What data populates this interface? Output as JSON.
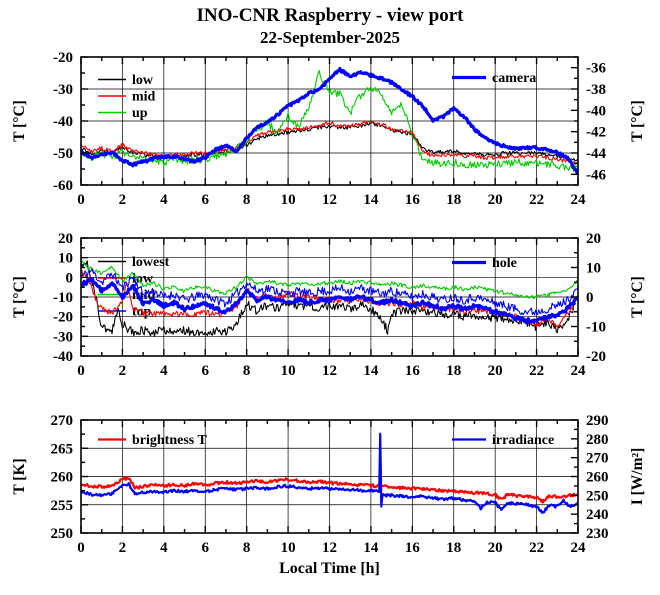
{
  "page_title": "INO-CNR Raspberry - view port",
  "page_subtitle": "22-September-2025",
  "colors": {
    "black": "#000000",
    "red": "#ff0000",
    "green": "#00cc00",
    "blue": "#0000ff",
    "frame": "#000000",
    "background": "#ffffff"
  },
  "chart_data": [
    {
      "type": "line",
      "grid": "major",
      "x_axis": {
        "label": "",
        "range": [
          0,
          24
        ],
        "ticks": [
          0,
          2,
          4,
          6,
          8,
          10,
          12,
          14,
          16,
          18,
          20,
          22,
          24
        ],
        "minor_step": 1
      },
      "left_axis": {
        "label": "T [°C]",
        "range": [
          -60,
          -20
        ],
        "ticks": [
          -60,
          -50,
          -40,
          -30,
          -20
        ],
        "minor_step": 5
      },
      "right_axis": {
        "label": "T [°C]",
        "range": [
          -47,
          -35
        ],
        "ticks": [
          -46,
          -44,
          -42,
          -40,
          -38,
          -36
        ],
        "minor_step": 1
      },
      "legend_left": [
        "low",
        "mid",
        "up"
      ],
      "legend_right": [
        "camera"
      ],
      "series": [
        {
          "name": "low",
          "color": "#000000",
          "axis": "left",
          "width": 1.1,
          "noise": 0.6,
          "x_start": 0,
          "x_step": 0.5,
          "y": [
            -48.5,
            -50.5,
            -49,
            -50,
            -48,
            -50,
            -50.5,
            -51,
            -51.5,
            -51,
            -51,
            -50.5,
            -50.5,
            -50,
            -49.5,
            -49,
            -47.5,
            -45.5,
            -44.5,
            -44,
            -43.5,
            -43,
            -42.5,
            -42,
            -41.5,
            -42,
            -42,
            -41.5,
            -40.5,
            -41.5,
            -43,
            -43.5,
            -44,
            -48.5,
            -50,
            -49.5,
            -49.5,
            -50,
            -50,
            -50.5,
            -50.5,
            -50,
            -50,
            -50,
            -50,
            -50.5,
            -51,
            -51.5,
            -52
          ]
        },
        {
          "name": "mid",
          "color": "#ff0000",
          "axis": "left",
          "width": 1.1,
          "noise": 0.6,
          "x_start": 0,
          "x_step": 0.5,
          "y": [
            -47.5,
            -49.5,
            -48.5,
            -49.5,
            -47.5,
            -49.5,
            -50,
            -50.5,
            -51,
            -50.5,
            -50.5,
            -50,
            -50,
            -49.5,
            -49,
            -48.5,
            -46.5,
            -44.5,
            -43.5,
            -43,
            -42.5,
            -42.5,
            -42,
            -41.5,
            -40.5,
            -41.5,
            -41.5,
            -41,
            -40,
            -41,
            -42.5,
            -43,
            -43.5,
            -49.5,
            -51,
            -50.5,
            -50.5,
            -51,
            -51,
            -51.5,
            -51.5,
            -51,
            -51,
            -51,
            -51,
            -51.5,
            -52,
            -52.5,
            -53
          ]
        },
        {
          "name": "up",
          "color": "#00cc00",
          "axis": "left",
          "width": 1.1,
          "noise": 1.2,
          "x_start": 0,
          "x_step": 0.5,
          "y": [
            -49.5,
            -51.5,
            -50,
            -51,
            -49.5,
            -51.5,
            -52,
            -52.5,
            -53,
            -52.5,
            -52.5,
            -52,
            -52,
            -51,
            -50,
            -48.5,
            -46,
            -42.5,
            -40.5,
            -44,
            -38.5,
            -42,
            -36,
            -25,
            -31,
            -31.5,
            -37.5,
            -32,
            -29.5,
            -31,
            -38,
            -35,
            -44,
            -52,
            -53,
            -53,
            -53,
            -53.5,
            -53.5,
            -54,
            -53.5,
            -53,
            -53,
            -53,
            -53,
            -53.5,
            -54,
            -54.5,
            -55
          ]
        },
        {
          "name": "camera",
          "color": "#0000ff",
          "axis": "right",
          "width": 3.2,
          "noise": 0.12,
          "x_start": 0,
          "x_step": 0.5,
          "y": [
            -43.8,
            -44.5,
            -44.2,
            -43.9,
            -44.7,
            -45.1,
            -44.8,
            -44.5,
            -44.4,
            -44.3,
            -44.6,
            -44.8,
            -44.4,
            -43.7,
            -43.3,
            -43.9,
            -42.6,
            -41.6,
            -41.1,
            -40.4,
            -39.6,
            -39.1,
            -38.4,
            -38.1,
            -37,
            -36.2,
            -36.8,
            -36.5,
            -36.7,
            -37,
            -37.4,
            -38.1,
            -38.7,
            -39.6,
            -40.9,
            -40.6,
            -39.8,
            -40.6,
            -41.8,
            -42.6,
            -43.1,
            -43.4,
            -43.6,
            -43.5,
            -43.5,
            -43.7,
            -43.9,
            -44.5,
            -45.9
          ]
        }
      ]
    },
    {
      "type": "line",
      "grid": "major",
      "x_axis": {
        "label": "",
        "range": [
          0,
          24
        ],
        "ticks": [
          0,
          2,
          4,
          6,
          8,
          10,
          12,
          14,
          16,
          18,
          20,
          22,
          24
        ],
        "minor_step": 1
      },
      "left_axis": {
        "label": "T [°C]",
        "range": [
          -40,
          20
        ],
        "ticks": [
          -40,
          -30,
          -20,
          -10,
          0,
          10,
          20
        ],
        "minor_step": 5
      },
      "right_axis": {
        "label": "T [°C]",
        "range": [
          -20,
          20
        ],
        "ticks": [
          -20,
          -10,
          0,
          10,
          20
        ],
        "minor_step": 5
      },
      "legend_left": [
        "lowest",
        "low",
        "mid",
        "top"
      ],
      "legend_right": [
        "hole"
      ],
      "series": [
        {
          "name": "lowest",
          "color": "#000000",
          "axis": "left",
          "width": 1.1,
          "noise": 2.2,
          "x": [
            0,
            0.3,
            0.6,
            1,
            1.5,
            1.8,
            2,
            2.5,
            3,
            3.5,
            4,
            4.5,
            5,
            5.5,
            6,
            6.5,
            7,
            7.5,
            8,
            8.5,
            9,
            9.5,
            10,
            10.5,
            11,
            11.5,
            12,
            12.5,
            13,
            13.5,
            14,
            14.5,
            14.8,
            15,
            15.5,
            16,
            16.5,
            17,
            17.5,
            18,
            18.5,
            19,
            19.5,
            20,
            20.5,
            21,
            21.5,
            22,
            22.5,
            23,
            23.5,
            24
          ],
          "y": [
            6,
            7,
            -4,
            -25,
            -27,
            -17,
            -24,
            -28,
            -27,
            -28,
            -27,
            -28,
            -27,
            -28,
            -28,
            -27,
            -28,
            -24,
            -13,
            -17,
            -14,
            -16,
            -13,
            -15,
            -14,
            -16,
            -14,
            -15,
            -16,
            -14,
            -16,
            -21,
            -27,
            -18,
            -17,
            -18,
            -17,
            -18,
            -19,
            -18,
            -20,
            -19,
            -21,
            -20,
            -22,
            -21,
            -23,
            -25,
            -23,
            -26,
            -22,
            -10
          ]
        },
        {
          "name": "low",
          "color": "#ff0000",
          "axis": "left",
          "width": 1.1,
          "noise": 1.6,
          "x": [
            0,
            0.4,
            0.8,
            1,
            1.5,
            2,
            2.2,
            2.5,
            3,
            3.5,
            4,
            4.5,
            5,
            5.5,
            6,
            6.5,
            7,
            7.5,
            8,
            8.5,
            9,
            9.5,
            10,
            10.5,
            11,
            11.5,
            12,
            12.5,
            13,
            13.5,
            14,
            14.5,
            15,
            15.5,
            16,
            16.5,
            17,
            17.5,
            18,
            18.5,
            19,
            19.5,
            20,
            20.5,
            21,
            21.5,
            22,
            22.5,
            23,
            23.5,
            24
          ],
          "y": [
            3,
            -2,
            -14,
            -16,
            -18,
            -12,
            -2,
            -16,
            -18,
            -19,
            -18,
            -19,
            -18,
            -19,
            -18,
            -19,
            -18,
            -15,
            -6,
            -11,
            -9,
            -11,
            -8,
            -10,
            -10,
            -11,
            -11,
            -12,
            -12,
            -11,
            -12,
            -14,
            -13,
            -14,
            -13,
            -15,
            -15,
            -16,
            -16,
            -17,
            -17,
            -18,
            -18,
            -19,
            -20,
            -22,
            -24,
            -21,
            -25,
            -19,
            -9
          ]
        },
        {
          "name": "mid",
          "color": "#00cc00",
          "axis": "left",
          "width": 1.1,
          "noise": 1.0,
          "x_start": 0,
          "x_step": 0.5,
          "y": [
            8,
            4,
            2,
            6,
            -2,
            2,
            -4,
            -3,
            -6,
            -5,
            -7,
            -5,
            -5,
            -7,
            -8,
            -5,
            0,
            -3,
            -2,
            -3,
            -4,
            -3,
            -4,
            -3,
            -3,
            -2,
            -3,
            -2,
            -3,
            -4,
            -3,
            -4,
            -5,
            -4,
            -5,
            -6,
            -5,
            -6,
            -5,
            -6,
            -7,
            -8,
            -9,
            -10,
            -10,
            -9,
            -8,
            -6,
            -2
          ]
        },
        {
          "name": "top",
          "color": "#0000ff",
          "axis": "right",
          "width": 1.1,
          "noise": 1.5,
          "x_start": 0,
          "x_step": 0.5,
          "y": [
            7,
            9,
            5,
            8,
            3,
            7,
            1,
            2,
            0,
            1,
            -1,
            0,
            1,
            -1,
            -2,
            1,
            5,
            2,
            3,
            2,
            1,
            2,
            1,
            2,
            2,
            3,
            2,
            3,
            2,
            1,
            2,
            1,
            0,
            1,
            0,
            -1,
            0,
            -1,
            0,
            -1,
            -2,
            -3,
            -4,
            -5,
            -5,
            -4,
            -3,
            -1,
            3
          ]
        },
        {
          "name": "hole",
          "color": "#0000ff",
          "axis": "right",
          "width": 3.2,
          "noise": 0.7,
          "x_start": 0,
          "x_step": 0.5,
          "y": [
            4,
            6,
            2,
            5,
            0,
            4,
            -2,
            -1,
            -3,
            -2,
            -4,
            -3,
            -2,
            -4,
            -5,
            -2,
            2,
            -1,
            0,
            -1,
            -2,
            -1,
            -2,
            -1,
            -1,
            0,
            -1,
            0,
            -1,
            -2,
            -1,
            -2,
            -3,
            -2,
            -3,
            -4,
            -3,
            -4,
            -3,
            -4,
            -5,
            -6,
            -7,
            -8,
            -8,
            -7,
            -6,
            -4,
            0
          ]
        }
      ]
    },
    {
      "type": "line",
      "grid": "major",
      "x_axis": {
        "label": "Local Time [h]",
        "range": [
          0,
          24
        ],
        "ticks": [
          0,
          2,
          4,
          6,
          8,
          10,
          12,
          14,
          16,
          18,
          20,
          22,
          24
        ],
        "minor_step": 1
      },
      "left_axis": {
        "label": "T [K]",
        "range": [
          250,
          270
        ],
        "ticks": [
          250,
          255,
          260,
          265,
          270
        ],
        "minor_step": 2.5
      },
      "right_axis": {
        "label": "I [W/m²]",
        "range": [
          230,
          290
        ],
        "ticks": [
          230,
          240,
          250,
          260,
          270,
          280,
          290
        ],
        "minor_step": 5
      },
      "legend_left": [
        "brightness T"
      ],
      "legend_right": [
        "irradiance"
      ],
      "series": [
        {
          "name": "brightness T",
          "color": "#ff0000",
          "axis": "left",
          "width": 2.2,
          "noise": 0.25,
          "x": [
            0,
            0.5,
            1,
            1.5,
            2,
            2.3,
            2.6,
            3,
            3.5,
            4,
            4.5,
            5,
            5.5,
            6,
            6.5,
            7,
            7.5,
            8,
            8.5,
            9,
            9.5,
            10,
            10.5,
            11,
            11.5,
            12,
            12.5,
            13,
            13.5,
            14,
            14.5,
            15,
            15.5,
            16,
            16.5,
            17,
            17.5,
            18,
            18.5,
            19,
            19.5,
            20,
            20.3,
            20.6,
            21,
            21.5,
            22,
            22.3,
            22.6,
            23,
            23.5,
            24
          ],
          "y": [
            258.6,
            258.3,
            258.2,
            258.4,
            259.5,
            259.8,
            258,
            258.2,
            258.5,
            258.3,
            258.6,
            258.4,
            258.7,
            258.5,
            258.8,
            259,
            258.8,
            259,
            259.2,
            259,
            259.3,
            259.5,
            259.2,
            259,
            259.1,
            258.9,
            258.7,
            258.6,
            258.5,
            258.4,
            258.3,
            258.2,
            258,
            257.9,
            257.8,
            257.6,
            257.5,
            257.4,
            257.2,
            257.1,
            257,
            256.8,
            255.9,
            256.8,
            256.6,
            256.5,
            256.3,
            255.6,
            256.5,
            256.4,
            256.6,
            256.9
          ]
        },
        {
          "name": "irradiance",
          "color": "#0000ff",
          "axis": "right",
          "width": 2.2,
          "noise": 0.7,
          "x": [
            0,
            0.5,
            1,
            1.5,
            2,
            2.3,
            2.6,
            3,
            3.5,
            4,
            4.5,
            5,
            5.5,
            6,
            6.5,
            7,
            7.5,
            8,
            8.5,
            9,
            9.5,
            10,
            10.5,
            11,
            11.5,
            12,
            12.5,
            13,
            13.5,
            14,
            14.4,
            14.45,
            14.5,
            14.55,
            15,
            15.5,
            16,
            16.5,
            17,
            17.5,
            18,
            18.5,
            19,
            19.3,
            19.6,
            20,
            20.3,
            20.6,
            21,
            21.5,
            22,
            22.3,
            22.6,
            23,
            23.3,
            23.6,
            24
          ],
          "y": [
            252,
            250.5,
            250,
            251,
            255,
            256,
            251,
            251.5,
            252,
            251.5,
            252.5,
            252,
            252.5,
            252,
            253,
            253.5,
            253,
            253.5,
            254,
            253.5,
            254.5,
            255,
            254,
            253.5,
            254,
            253.5,
            253,
            253,
            252.5,
            252.5,
            252.5,
            283,
            244,
            250,
            250,
            249.5,
            249,
            249.5,
            248.5,
            248,
            248.5,
            247.5,
            247,
            243,
            246.5,
            246,
            242.5,
            246,
            245.5,
            245,
            244,
            241,
            244.5,
            244,
            247.5,
            244,
            245.5
          ]
        }
      ]
    }
  ]
}
